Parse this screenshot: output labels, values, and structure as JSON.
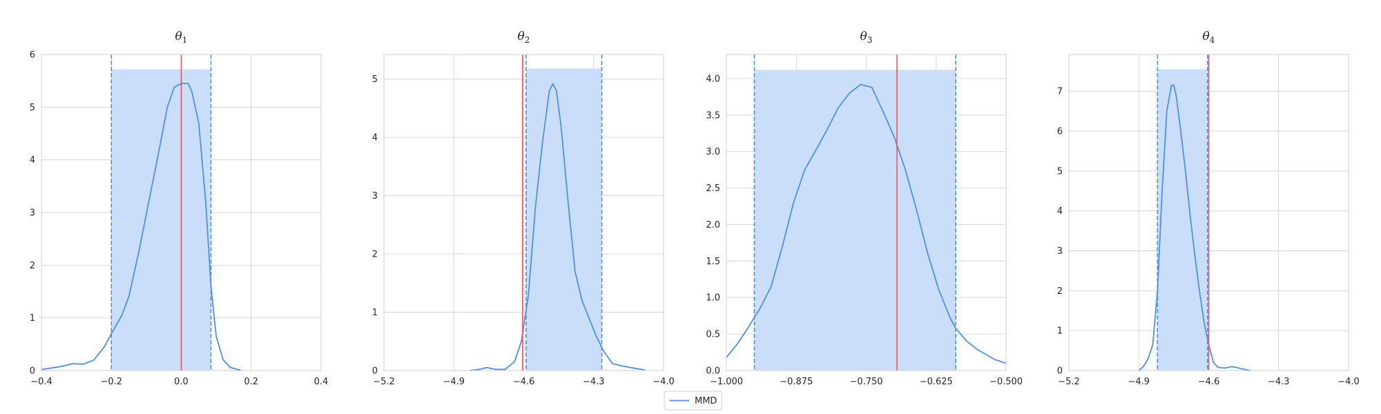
{
  "colors": {
    "density": "#4b8ff0",
    "band_fill": "#c7dcfa",
    "true_line": "#f2545b",
    "grid": "#d6d6d6",
    "frame": "#cccccc"
  },
  "legend": {
    "label": "MMD",
    "placement": "bottom-center"
  },
  "chart_data": [
    {
      "type": "line",
      "title_symbol": "θ",
      "title_sub": "1",
      "xlim": [
        -0.4,
        0.4
      ],
      "ylim": [
        0,
        6
      ],
      "xticks": [
        -0.4,
        -0.2,
        0.0,
        0.2,
        0.4
      ],
      "xtick_labels": [
        "−0.4",
        "−0.2",
        "0.0",
        "0.2",
        "0.4"
      ],
      "yticks": [
        0,
        1,
        2,
        3,
        4,
        5,
        6
      ],
      "ytick_labels": [
        "0",
        "1",
        "2",
        "3",
        "4",
        "5",
        "6"
      ],
      "interval": [
        -0.2,
        0.085
      ],
      "band_height": 5.72,
      "true_value": 0.0,
      "series": [
        {
          "name": "MMD",
          "x": [
            -0.4,
            -0.35,
            -0.31,
            -0.28,
            -0.25,
            -0.22,
            -0.2,
            -0.17,
            -0.15,
            -0.12,
            -0.09,
            -0.06,
            -0.04,
            -0.02,
            0.0,
            0.02,
            0.03,
            0.05,
            0.07,
            0.085,
            0.1,
            0.12,
            0.14,
            0.16,
            0.17
          ],
          "y": [
            0.02,
            0.07,
            0.13,
            0.12,
            0.2,
            0.45,
            0.7,
            1.05,
            1.4,
            2.3,
            3.3,
            4.3,
            5.0,
            5.38,
            5.45,
            5.45,
            5.3,
            4.7,
            3.2,
            1.6,
            0.65,
            0.2,
            0.06,
            0.02,
            0.01
          ]
        }
      ]
    },
    {
      "type": "line",
      "title_symbol": "θ",
      "title_sub": "2",
      "xlim": [
        -5.2,
        -4.0
      ],
      "ylim": [
        0,
        5.42
      ],
      "xticks": [
        -5.2,
        -4.9,
        -4.6,
        -4.3,
        -4.0
      ],
      "xtick_labels": [
        "−5.2",
        "−4.9",
        "−4.6",
        "−4.3",
        "−4.0"
      ],
      "yticks": [
        0,
        1,
        2,
        3,
        4,
        5
      ],
      "ytick_labels": [
        "0",
        "1",
        "2",
        "3",
        "4",
        "5"
      ],
      "interval": [
        -4.59,
        -4.265
      ],
      "band_height": 5.18,
      "true_value": -4.605,
      "series": [
        {
          "name": "MMD",
          "x": [
            -4.83,
            -4.79,
            -4.76,
            -4.72,
            -4.68,
            -4.64,
            -4.61,
            -4.58,
            -4.55,
            -4.52,
            -4.49,
            -4.475,
            -4.46,
            -4.44,
            -4.41,
            -4.38,
            -4.35,
            -4.32,
            -4.29,
            -4.26,
            -4.22,
            -4.18,
            -4.14,
            -4.08
          ],
          "y": [
            0.0,
            0.02,
            0.05,
            0.02,
            0.02,
            0.15,
            0.5,
            1.3,
            2.8,
            3.9,
            4.8,
            4.92,
            4.8,
            4.2,
            2.9,
            1.7,
            1.2,
            0.9,
            0.6,
            0.35,
            0.12,
            0.08,
            0.05,
            0.01
          ]
        }
      ]
    },
    {
      "type": "line",
      "title_symbol": "θ",
      "title_sub": "3",
      "xlim": [
        -1.0,
        -0.5
      ],
      "ylim": [
        0,
        4.33
      ],
      "xticks": [
        -1.0,
        -0.875,
        -0.75,
        -0.625,
        -0.5
      ],
      "xtick_labels": [
        "−1.000",
        "−0.875",
        "−0.750",
        "−0.625",
        "−0.500"
      ],
      "yticks": [
        0,
        0.5,
        1.0,
        1.5,
        2.0,
        2.5,
        3.0,
        3.5,
        4.0
      ],
      "ytick_labels": [
        "0.0",
        "0.5",
        "1.0",
        "1.5",
        "2.0",
        "2.5",
        "3.0",
        "3.5",
        "4.0"
      ],
      "interval": [
        -0.95,
        -0.59
      ],
      "band_height": 4.12,
      "true_value": -0.695,
      "series": [
        {
          "name": "MMD",
          "x": [
            -1.0,
            -0.98,
            -0.96,
            -0.95,
            -0.94,
            -0.92,
            -0.9,
            -0.88,
            -0.86,
            -0.84,
            -0.82,
            -0.8,
            -0.78,
            -0.76,
            -0.74,
            -0.72,
            -0.7,
            -0.68,
            -0.66,
            -0.64,
            -0.62,
            -0.6,
            -0.59,
            -0.57,
            -0.55,
            -0.52,
            -0.5
          ],
          "y": [
            0.18,
            0.37,
            0.6,
            0.73,
            0.85,
            1.15,
            1.7,
            2.3,
            2.75,
            3.02,
            3.3,
            3.6,
            3.8,
            3.92,
            3.88,
            3.55,
            3.2,
            2.75,
            2.2,
            1.6,
            1.1,
            0.72,
            0.58,
            0.4,
            0.28,
            0.15,
            0.1
          ]
        }
      ]
    },
    {
      "type": "line",
      "title_symbol": "θ",
      "title_sub": "4",
      "xlim": [
        -5.2,
        -4.0
      ],
      "ylim": [
        0,
        7.92
      ],
      "xticks": [
        -5.2,
        -4.9,
        -4.6,
        -4.3,
        -4.0
      ],
      "xtick_labels": [
        "−5.2",
        "−4.9",
        "−4.6",
        "−4.3",
        "−4.0"
      ],
      "yticks": [
        0,
        1,
        2,
        3,
        4,
        5,
        6,
        7
      ],
      "ytick_labels": [
        "0",
        "1",
        "2",
        "3",
        "4",
        "5",
        "6",
        "7"
      ],
      "interval": [
        -4.82,
        -4.605
      ],
      "band_height": 7.55,
      "true_value": -4.6,
      "series": [
        {
          "name": "MMD",
          "x": [
            -4.9,
            -4.88,
            -4.86,
            -4.84,
            -4.82,
            -4.8,
            -4.78,
            -4.76,
            -4.75,
            -4.74,
            -4.72,
            -4.7,
            -4.68,
            -4.66,
            -4.64,
            -4.62,
            -4.6,
            -4.58,
            -4.56,
            -4.53,
            -4.5,
            -4.47,
            -4.44,
            -4.42
          ],
          "y": [
            0.0,
            0.1,
            0.3,
            0.65,
            2.0,
            4.5,
            6.5,
            7.15,
            7.15,
            6.9,
            6.0,
            5.0,
            3.9,
            2.9,
            2.0,
            1.2,
            0.65,
            0.2,
            0.08,
            0.06,
            0.1,
            0.06,
            0.02,
            0.0
          ]
        }
      ]
    }
  ]
}
